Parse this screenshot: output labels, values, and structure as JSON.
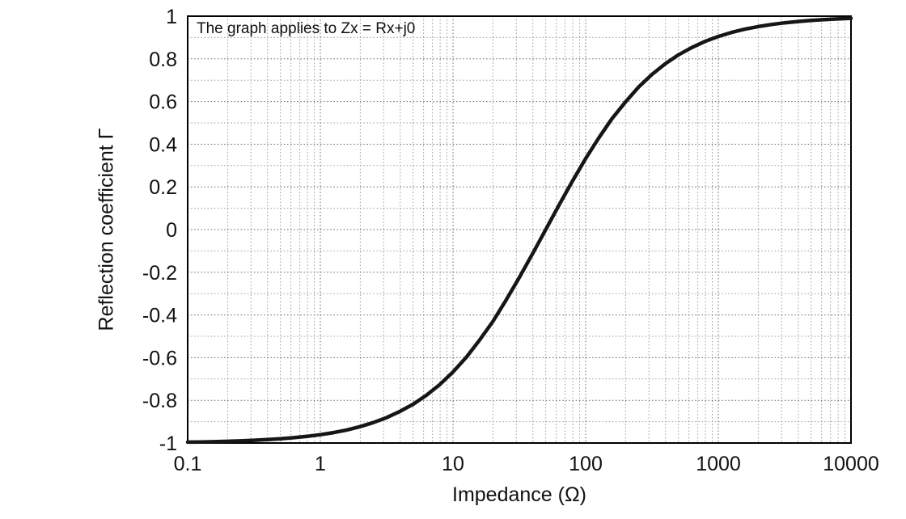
{
  "chart_data": {
    "type": "line",
    "annotation": "The graph applies to Zx = Rx+j0",
    "xlabel": "Impedance (Ω)",
    "ylabel": "Reflection coefficient Γ",
    "x_scale": "log",
    "xlim": [
      0.1,
      10000
    ],
    "ylim": [
      -1,
      1
    ],
    "grid": "major and minor, dotted",
    "legend": "none",
    "x_ticks": [
      0.1,
      1,
      10,
      100,
      1000,
      10000
    ],
    "x_tick_labels": [
      "0.1",
      "1",
      "10",
      "100",
      "1000",
      "10000"
    ],
    "y_ticks": [
      -1,
      -0.8,
      -0.6,
      -0.4,
      -0.2,
      0,
      0.2,
      0.4,
      0.6,
      0.8,
      1
    ],
    "y_tick_labels": [
      "-1",
      "-0.8",
      "-0.6",
      "-0.4",
      "-0.2",
      "0",
      "0.2",
      "0.4",
      "0.6",
      "0.8",
      "1"
    ],
    "curve_color": "#161616",
    "series": [
      {
        "name": "reflection-coefficient",
        "x": [
          0.1,
          0.126,
          0.158,
          0.2,
          0.251,
          0.316,
          0.398,
          0.501,
          0.631,
          0.794,
          1,
          1.26,
          1.58,
          2,
          2.51,
          3.16,
          3.98,
          5.01,
          6.31,
          7.94,
          10,
          12.6,
          15.8,
          20,
          25.1,
          31.6,
          39.8,
          50.1,
          63.1,
          79.4,
          100,
          126,
          158,
          200,
          251,
          316,
          398,
          501,
          631,
          794,
          1000,
          1259,
          1585,
          1995,
          2512,
          3162,
          3981,
          5012,
          6310,
          7943,
          10000
        ],
        "y": [
          -0.996,
          -0.995,
          -0.994,
          -0.992,
          -0.99,
          -0.987,
          -0.984,
          -0.98,
          -0.975,
          -0.969,
          -0.961,
          -0.951,
          -0.939,
          -0.923,
          -0.904,
          -0.881,
          -0.852,
          -0.818,
          -0.776,
          -0.726,
          -0.667,
          -0.598,
          -0.519,
          -0.43,
          -0.331,
          -0.225,
          -0.113,
          0.001,
          0.116,
          0.227,
          0.333,
          0.431,
          0.52,
          0.599,
          0.668,
          0.727,
          0.777,
          0.819,
          0.853,
          0.882,
          0.905,
          0.924,
          0.939,
          0.951,
          0.961,
          0.969,
          0.975,
          0.98,
          0.984,
          0.987,
          0.99
        ]
      }
    ]
  }
}
